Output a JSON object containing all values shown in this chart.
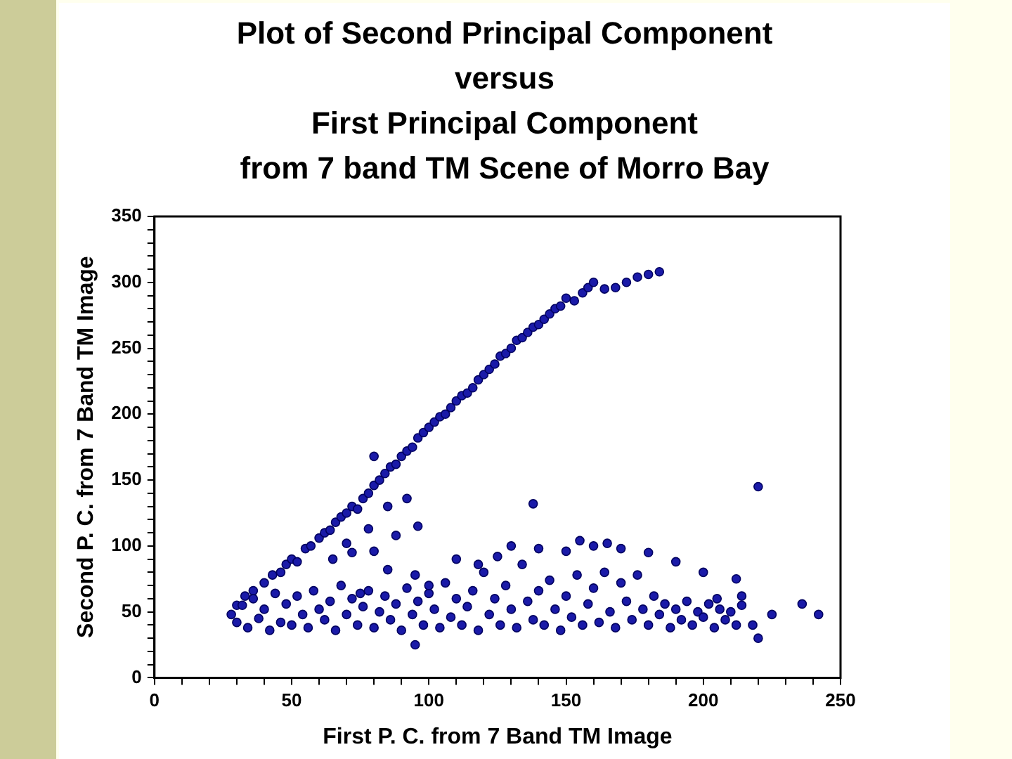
{
  "chart_data": {
    "type": "scatter",
    "title": "Plot of Second Principal Component\nversus\nFirst Principal Component\nfrom 7 band TM Scene of Morro Bay",
    "xlabel": "First P. C. from 7 Band TM Image",
    "ylabel": "Second P. C. from 7 Band TM Image",
    "xlim": [
      0,
      250
    ],
    "ylim": [
      0,
      350
    ],
    "xticks": [
      0,
      {
        "value": 10,
        "label": null
      },
      {
        "value": 20,
        "label": null
      },
      {
        "value": 30,
        "label": null
      },
      {
        "value": 40,
        "label": null
      },
      50,
      {
        "value": 60,
        "label": null
      },
      {
        "value": 70,
        "label": null
      },
      {
        "value": 80,
        "label": null
      },
      {
        "value": 90,
        "label": null
      },
      100,
      {
        "value": 110,
        "label": null
      },
      {
        "value": 120,
        "label": null
      },
      {
        "value": 130,
        "label": null
      },
      {
        "value": 140,
        "label": null
      },
      150,
      {
        "value": 160,
        "label": null
      },
      {
        "value": 170,
        "label": null
      },
      {
        "value": 180,
        "label": null
      },
      {
        "value": 190,
        "label": null
      },
      200,
      {
        "value": 210,
        "label": null
      },
      {
        "value": 220,
        "label": null
      },
      {
        "value": 230,
        "label": null
      },
      {
        "value": 240,
        "label": null
      },
      250
    ],
    "yticks": [
      0,
      {
        "value": 10,
        "label": null
      },
      {
        "value": 20,
        "label": null
      },
      {
        "value": 30,
        "label": null
      },
      {
        "value": 40,
        "label": null
      },
      50,
      {
        "value": 60,
        "label": null
      },
      {
        "value": 70,
        "label": null
      },
      {
        "value": 80,
        "label": null
      },
      {
        "value": 90,
        "label": null
      },
      100,
      {
        "value": 110,
        "label": null
      },
      {
        "value": 120,
        "label": null
      },
      {
        "value": 130,
        "label": null
      },
      {
        "value": 140,
        "label": null
      },
      150,
      {
        "value": 160,
        "label": null
      },
      {
        "value": 170,
        "label": null
      },
      {
        "value": 180,
        "label": null
      },
      {
        "value": 190,
        "label": null
      },
      200,
      {
        "value": 210,
        "label": null
      },
      {
        "value": 220,
        "label": null
      },
      {
        "value": 230,
        "label": null
      },
      {
        "value": 240,
        "label": null
      },
      250,
      {
        "value": 260,
        "label": null
      },
      {
        "value": 270,
        "label": null
      },
      {
        "value": 280,
        "label": null
      },
      {
        "value": 290,
        "label": null
      },
      300,
      {
        "value": 310,
        "label": null
      },
      {
        "value": 320,
        "label": null
      },
      {
        "value": 330,
        "label": null
      },
      {
        "value": 340,
        "label": null
      },
      350
    ],
    "grid": false,
    "legend": false,
    "marker": "circle",
    "series": [
      {
        "color": "#1a1aa8",
        "x": [
          30,
          33,
          36,
          40,
          43,
          46,
          48,
          50,
          52,
          55,
          57,
          60,
          62,
          64,
          66,
          68,
          70,
          72,
          74,
          76,
          78,
          80,
          82,
          84,
          86,
          88,
          90,
          92,
          94,
          96,
          98,
          100,
          102,
          104,
          106,
          108,
          110,
          112,
          114,
          116,
          118,
          120,
          122,
          124,
          126,
          128,
          130,
          132,
          134,
          136,
          138,
          140,
          142,
          144,
          146,
          148,
          150,
          153,
          156,
          158,
          160,
          164,
          168,
          172,
          176,
          180,
          184,
          80,
          85,
          78,
          92,
          70,
          28,
          30,
          32,
          34,
          36,
          38,
          40,
          42,
          44,
          46,
          48,
          50,
          52,
          54,
          56,
          58,
          60,
          62,
          64,
          66,
          68,
          70,
          72,
          74,
          76,
          78,
          80,
          82,
          84,
          86,
          88,
          90,
          92,
          94,
          96,
          98,
          100,
          102,
          104,
          106,
          108,
          110,
          112,
          114,
          116,
          118,
          120,
          122,
          124,
          126,
          128,
          130,
          132,
          134,
          136,
          138,
          140,
          142,
          144,
          146,
          148,
          150,
          152,
          154,
          156,
          158,
          160,
          162,
          164,
          166,
          168,
          170,
          172,
          174,
          176,
          178,
          180,
          182,
          184,
          186,
          188,
          190,
          192,
          194,
          196,
          198,
          200,
          202,
          204,
          206,
          208,
          210,
          212,
          214,
          125,
          130,
          140,
          150,
          160,
          170,
          180,
          190,
          200,
          155,
          165,
          110,
          118,
          95,
          100,
          85,
          75,
          65,
          72,
          80,
          88,
          96,
          95,
          138,
          220,
          220,
          218,
          225,
          236,
          242,
          205,
          212,
          214
        ],
        "values": [
          55,
          62,
          66,
          72,
          78,
          80,
          86,
          90,
          88,
          98,
          100,
          106,
          110,
          112,
          118,
          122,
          125,
          130,
          128,
          136,
          140,
          146,
          150,
          155,
          160,
          162,
          168,
          172,
          175,
          182,
          186,
          190,
          194,
          198,
          200,
          205,
          210,
          214,
          216,
          220,
          226,
          230,
          234,
          238,
          244,
          246,
          250,
          256,
          258,
          262,
          266,
          268,
          272,
          276,
          280,
          282,
          288,
          286,
          292,
          296,
          300,
          295,
          296,
          300,
          304,
          306,
          308,
          168,
          130,
          113,
          136,
          102,
          48,
          42,
          55,
          38,
          60,
          45,
          52,
          36,
          64,
          42,
          56,
          40,
          62,
          48,
          38,
          66,
          52,
          44,
          58,
          36,
          70,
          48,
          60,
          40,
          54,
          66,
          38,
          50,
          62,
          44,
          56,
          36,
          68,
          48,
          58,
          40,
          64,
          52,
          38,
          72,
          46,
          60,
          40,
          54,
          66,
          36,
          80,
          48,
          60,
          40,
          70,
          52,
          38,
          86,
          58,
          44,
          66,
          40,
          74,
          52,
          36,
          62,
          46,
          78,
          40,
          56,
          68,
          42,
          80,
          50,
          38,
          72,
          58,
          44,
          78,
          52,
          40,
          62,
          48,
          56,
          38,
          52,
          44,
          58,
          40,
          50,
          46,
          56,
          38,
          52,
          44,
          50,
          40,
          55,
          92,
          100,
          98,
          96,
          100,
          98,
          95,
          88,
          80,
          104,
          102,
          90,
          86,
          78,
          70,
          82,
          64,
          90,
          95,
          96,
          108,
          115,
          25,
          132,
          145,
          30,
          40,
          48,
          56,
          48,
          60,
          75,
          62
        ]
      }
    ]
  }
}
